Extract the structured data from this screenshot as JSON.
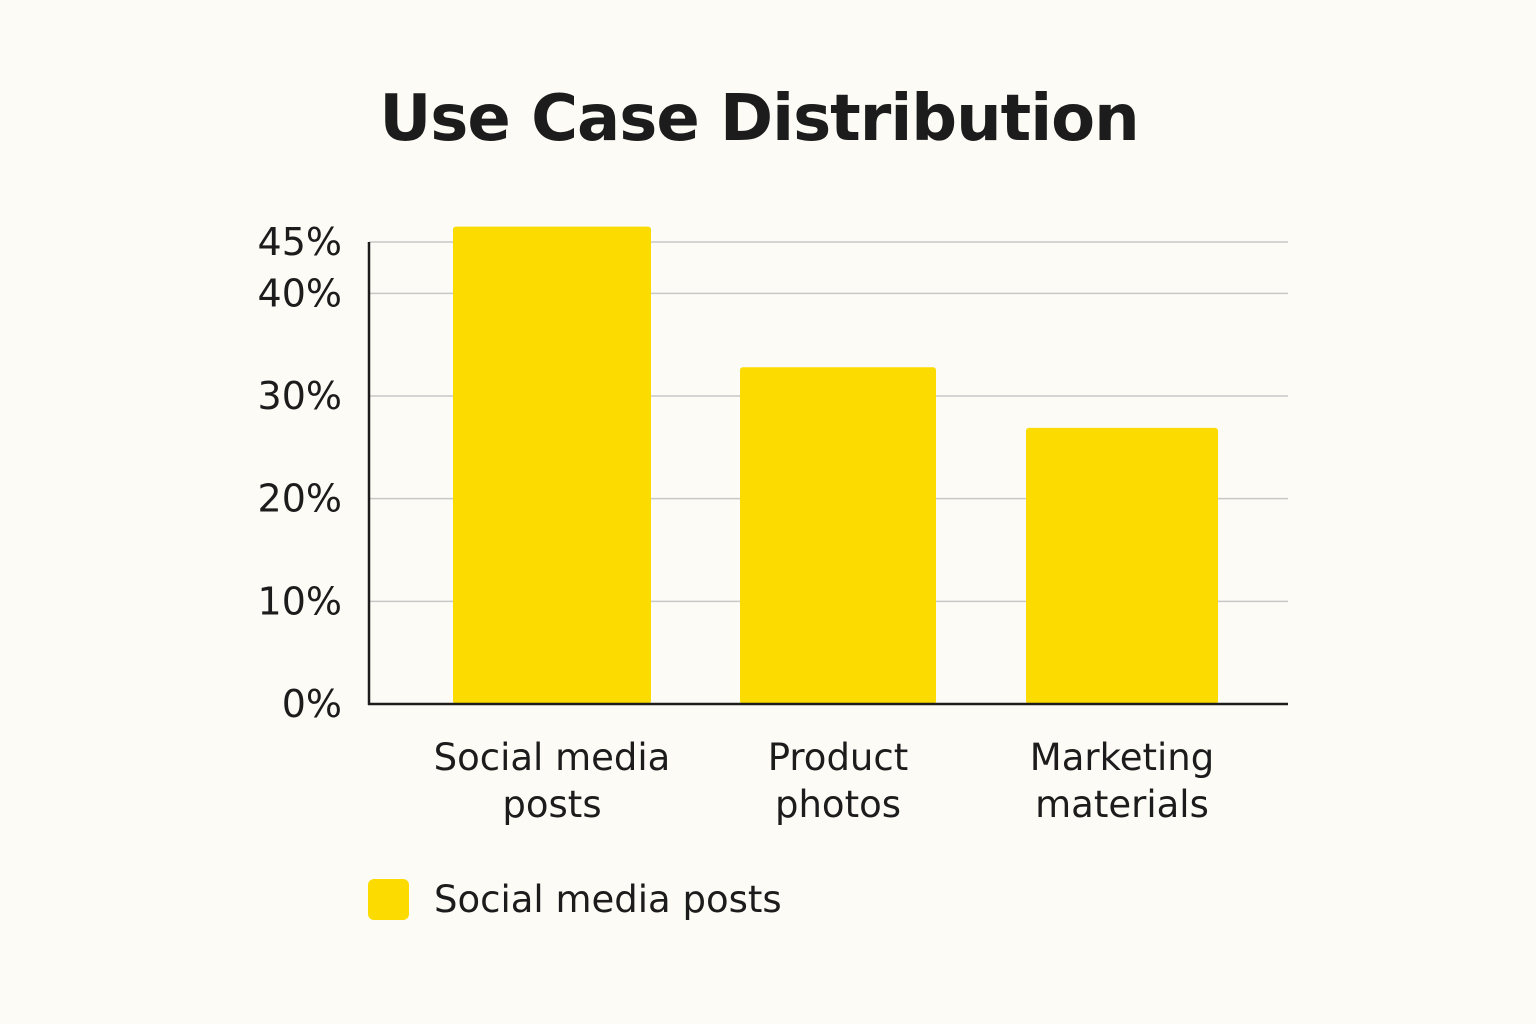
{
  "colors": {
    "bar": "#fcdb00",
    "axis": "#1c1c1c",
    "grid": "#c8c8c8",
    "background": "#fcfbf5"
  },
  "chart_data": {
    "type": "bar",
    "title": "Use Case Distribution",
    "xlabel": "",
    "ylabel": "",
    "categories": [
      "Social media posts",
      "Product photos",
      "Marketing materials"
    ],
    "category_lines": [
      [
        "Social media",
        "posts"
      ],
      [
        "Product",
        "photos"
      ],
      [
        "Marketing",
        "materials"
      ]
    ],
    "series": [
      {
        "name": "Social media posts",
        "values": [
          46.5,
          32.8,
          26.9
        ]
      }
    ],
    "ylim": [
      0,
      45
    ],
    "yticks": [
      0,
      10,
      20,
      30,
      40,
      45
    ],
    "ytick_labels": [
      "0%",
      "10%",
      "20%",
      "30%",
      "40%",
      "45%"
    ],
    "grid": true,
    "legend": {
      "position": "bottom-left",
      "entries": [
        "Social media posts"
      ]
    }
  }
}
